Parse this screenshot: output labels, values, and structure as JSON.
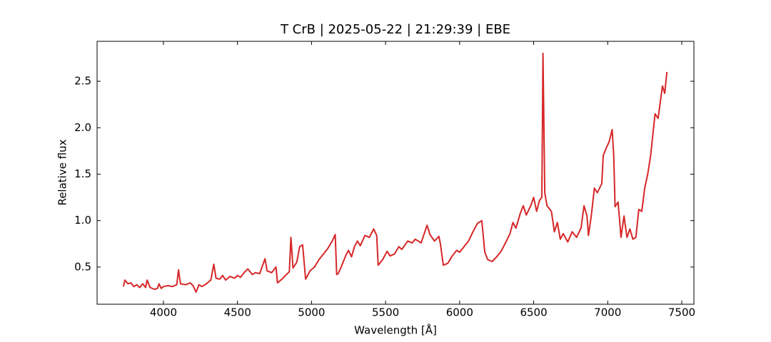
{
  "chart_data": {
    "type": "line",
    "title": "T CrB | 2025-05-22 | 21:29:39 | EBE",
    "x_label": "Wavelength [Å]",
    "y_label": "Relative flux",
    "color": "#d62728",
    "x": [
      3730,
      3740,
      3760,
      3780,
      3800,
      3820,
      3840,
      3860,
      3880,
      3890,
      3910,
      3940,
      3960,
      3970,
      3985,
      4000,
      4030,
      4060,
      4090,
      4102,
      4115,
      4150,
      4180,
      4200,
      4220,
      4240,
      4260,
      4290,
      4320,
      4340,
      4355,
      4380,
      4400,
      4420,
      4450,
      4480,
      4500,
      4520,
      4550,
      4570,
      4600,
      4620,
      4650,
      4686,
      4700,
      4730,
      4760,
      4770,
      4800,
      4830,
      4850,
      4861,
      4875,
      4900,
      4920,
      4940,
      4960,
      4990,
      5020,
      5050,
      5080,
      5110,
      5140,
      5160,
      5170,
      5180,
      5200,
      5230,
      5250,
      5270,
      5290,
      5310,
      5330,
      5360,
      5390,
      5420,
      5440,
      5450,
      5480,
      5510,
      5530,
      5560,
      5590,
      5610,
      5650,
      5680,
      5700,
      5740,
      5780,
      5800,
      5830,
      5860,
      5870,
      5890,
      5920,
      5950,
      5980,
      6000,
      6030,
      6060,
      6090,
      6120,
      6150,
      6170,
      6190,
      6220,
      6250,
      6280,
      6310,
      6340,
      6360,
      6380,
      6410,
      6430,
      6450,
      6480,
      6500,
      6520,
      6540,
      6555,
      6563,
      6575,
      6590,
      6620,
      6640,
      6660,
      6680,
      6700,
      6730,
      6760,
      6790,
      6820,
      6840,
      6860,
      6870,
      6890,
      6910,
      6930,
      6960,
      6970,
      6990,
      7010,
      7030,
      7040,
      7050,
      7070,
      7090,
      7110,
      7130,
      7150,
      7170,
      7190,
      7210,
      7230,
      7250,
      7270,
      7290,
      7320,
      7340,
      7370,
      7385,
      7400
    ],
    "values": [
      0.29,
      0.36,
      0.32,
      0.33,
      0.29,
      0.31,
      0.28,
      0.32,
      0.28,
      0.36,
      0.28,
      0.26,
      0.27,
      0.32,
      0.27,
      0.29,
      0.3,
      0.29,
      0.31,
      0.47,
      0.32,
      0.31,
      0.33,
      0.3,
      0.23,
      0.31,
      0.29,
      0.32,
      0.36,
      0.53,
      0.38,
      0.37,
      0.41,
      0.36,
      0.4,
      0.38,
      0.41,
      0.39,
      0.45,
      0.48,
      0.42,
      0.44,
      0.43,
      0.59,
      0.46,
      0.44,
      0.5,
      0.33,
      0.37,
      0.42,
      0.45,
      0.82,
      0.49,
      0.55,
      0.72,
      0.74,
      0.37,
      0.46,
      0.5,
      0.58,
      0.64,
      0.7,
      0.78,
      0.85,
      0.42,
      0.43,
      0.5,
      0.62,
      0.68,
      0.61,
      0.72,
      0.78,
      0.73,
      0.84,
      0.82,
      0.91,
      0.84,
      0.52,
      0.58,
      0.67,
      0.62,
      0.64,
      0.72,
      0.69,
      0.78,
      0.76,
      0.8,
      0.76,
      0.95,
      0.85,
      0.78,
      0.83,
      0.75,
      0.52,
      0.54,
      0.62,
      0.68,
      0.66,
      0.72,
      0.78,
      0.88,
      0.97,
      1.0,
      0.66,
      0.58,
      0.56,
      0.61,
      0.67,
      0.76,
      0.86,
      0.98,
      0.92,
      1.08,
      1.16,
      1.06,
      1.16,
      1.25,
      1.1,
      1.22,
      1.25,
      2.8,
      1.3,
      1.16,
      1.1,
      0.88,
      0.98,
      0.8,
      0.86,
      0.77,
      0.88,
      0.82,
      0.92,
      1.16,
      1.05,
      0.84,
      1.06,
      1.35,
      1.3,
      1.4,
      1.7,
      1.78,
      1.85,
      1.98,
      1.72,
      1.15,
      1.2,
      0.82,
      1.05,
      0.82,
      0.91,
      0.8,
      0.82,
      1.12,
      1.1,
      1.35,
      1.5,
      1.7,
      2.15,
      2.1,
      2.45,
      2.37,
      2.6
    ],
    "xlim": [
      3552,
      7582
    ],
    "ylim": [
      0.1,
      2.93
    ],
    "xticks": [
      4000,
      4500,
      5000,
      5500,
      6000,
      6500,
      7000,
      7500
    ],
    "yticks": [
      0.5,
      {
        "value": 1,
        "label": "1.0"
      },
      1.5,
      {
        "value": 2,
        "label": "2.0"
      },
      2.5
    ]
  }
}
